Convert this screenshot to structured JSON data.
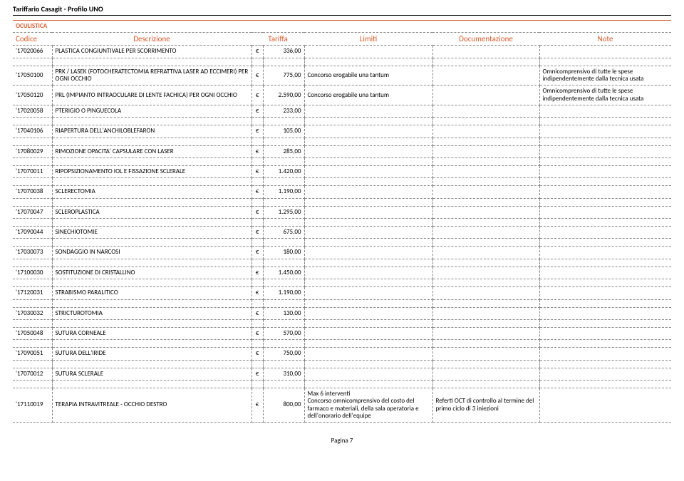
{
  "doc_title": "Tariffario Casagit - Profilo UNO",
  "section": "OCULISTICA",
  "headers": {
    "codice": "Codice",
    "descrizione": "Descrizione",
    "tariffa": "Tariffa",
    "limiti": "Limiti",
    "documentazione": "Documentazione",
    "note": "Note"
  },
  "currency": "€",
  "footer": "Pagina 7",
  "style": {
    "accent": "#d85a2a",
    "border": "#888888"
  },
  "rows": [
    {
      "code": "'17020066",
      "desc": "PLASTICA CONGIUNTIVALE PER SCORRIMENTO",
      "tar": "336,00",
      "lim": "",
      "doc": "",
      "note": "",
      "gap_after": true
    },
    {
      "code": "'17050100",
      "desc": "PRK / LASEK (FOTOCHERATECTOMIA REFRATTIVA LASER AD ECCIMERI) PER OGNI OCCHIO",
      "tar": "775,00",
      "lim": "Concorso erogabile una tantum",
      "doc": "",
      "note": "Omnicomprensivo di tutte le spese indipendentemente dalla tecnica usata"
    },
    {
      "code": "'17050120",
      "desc": "PRL (IMPIANTO INTRAOCULARE DI LENTE FACHICA) PER OGNI OCCHIO",
      "tar": "2.590,00",
      "lim": "Concorso erogabile una tantum",
      "doc": "",
      "note": "Omnicomprensivo di tutte le spese indipendentemente dalla tecnica usata"
    },
    {
      "code": "'17020058",
      "desc": "PTERIGIO O PINGUECOLA",
      "tar": "233,00",
      "lim": "",
      "doc": "",
      "note": "",
      "gap_after": true
    },
    {
      "code": "'17040106",
      "desc": "RIAPERTURA DELL'ANCHILOBLEFARON",
      "tar": "105,00",
      "lim": "",
      "doc": "",
      "note": "",
      "gap_after": true
    },
    {
      "code": "'17080029",
      "desc": "RIMOZIONE OPACITA' CAPSULARE CON LASER",
      "tar": "285,00",
      "lim": "",
      "doc": "",
      "note": "",
      "gap_after": true
    },
    {
      "code": "'17070011",
      "desc": "RIPOPSIZIONAMENTO IOL E FISSAZIONE SCLERALE",
      "tar": "1.420,00",
      "lim": "",
      "doc": "",
      "note": "",
      "gap_after": true
    },
    {
      "code": "'17070038",
      "desc": "SCLERECTOMIA",
      "tar": "1.190,00",
      "lim": "",
      "doc": "",
      "note": "",
      "gap_after": true
    },
    {
      "code": "'17070047",
      "desc": "SCLEROPLASTICA",
      "tar": "1.295,00",
      "lim": "",
      "doc": "",
      "note": "",
      "gap_after": true
    },
    {
      "code": "'17090044",
      "desc": "SINECHIOTOMIE",
      "tar": "675,00",
      "lim": "",
      "doc": "",
      "note": "",
      "gap_after": true
    },
    {
      "code": "'17030073",
      "desc": "SONDAGGIO IN NARCOSI",
      "tar": "180,00",
      "lim": "",
      "doc": "",
      "note": "",
      "gap_after": true
    },
    {
      "code": "'17100030",
      "desc": "SOSTITUZIONE DI CRISTALLINO",
      "tar": "1.450,00",
      "lim": "",
      "doc": "",
      "note": "",
      "gap_after": true
    },
    {
      "code": "'17120031",
      "desc": "STRABISMO PARALITICO",
      "tar": "1.190,00",
      "lim": "",
      "doc": "",
      "note": "",
      "gap_after": true
    },
    {
      "code": "'17030032",
      "desc": "STRICTUROTOMIA",
      "tar": "130,00",
      "lim": "",
      "doc": "",
      "note": "",
      "gap_after": true
    },
    {
      "code": "'17050048",
      "desc": "SUTURA CORNEALE",
      "tar": "570,00",
      "lim": "",
      "doc": "",
      "note": "",
      "gap_after": true
    },
    {
      "code": "'17090051",
      "desc": "SUTURA DELL'IRIDE",
      "tar": "750,00",
      "lim": "",
      "doc": "",
      "note": "",
      "gap_after": true
    },
    {
      "code": "'17070012",
      "desc": "SUTURA SCLERALE",
      "tar": "310,00",
      "lim": "",
      "doc": "",
      "note": "",
      "gap_after": true
    },
    {
      "code": "'17110019",
      "desc": "TERAPIA INTRAVITREALE - OCCHIO DESTRO",
      "tar": "800,00",
      "lim": "Max 6 interventi\nConcorso omnicomprensivo del costo del farmaco e materiali, della sala operatoria e dell'onorario dell'equipe",
      "doc": "Referti OCT di controllo al termine del primo ciclo di 3 iniezioni",
      "note": ""
    }
  ]
}
